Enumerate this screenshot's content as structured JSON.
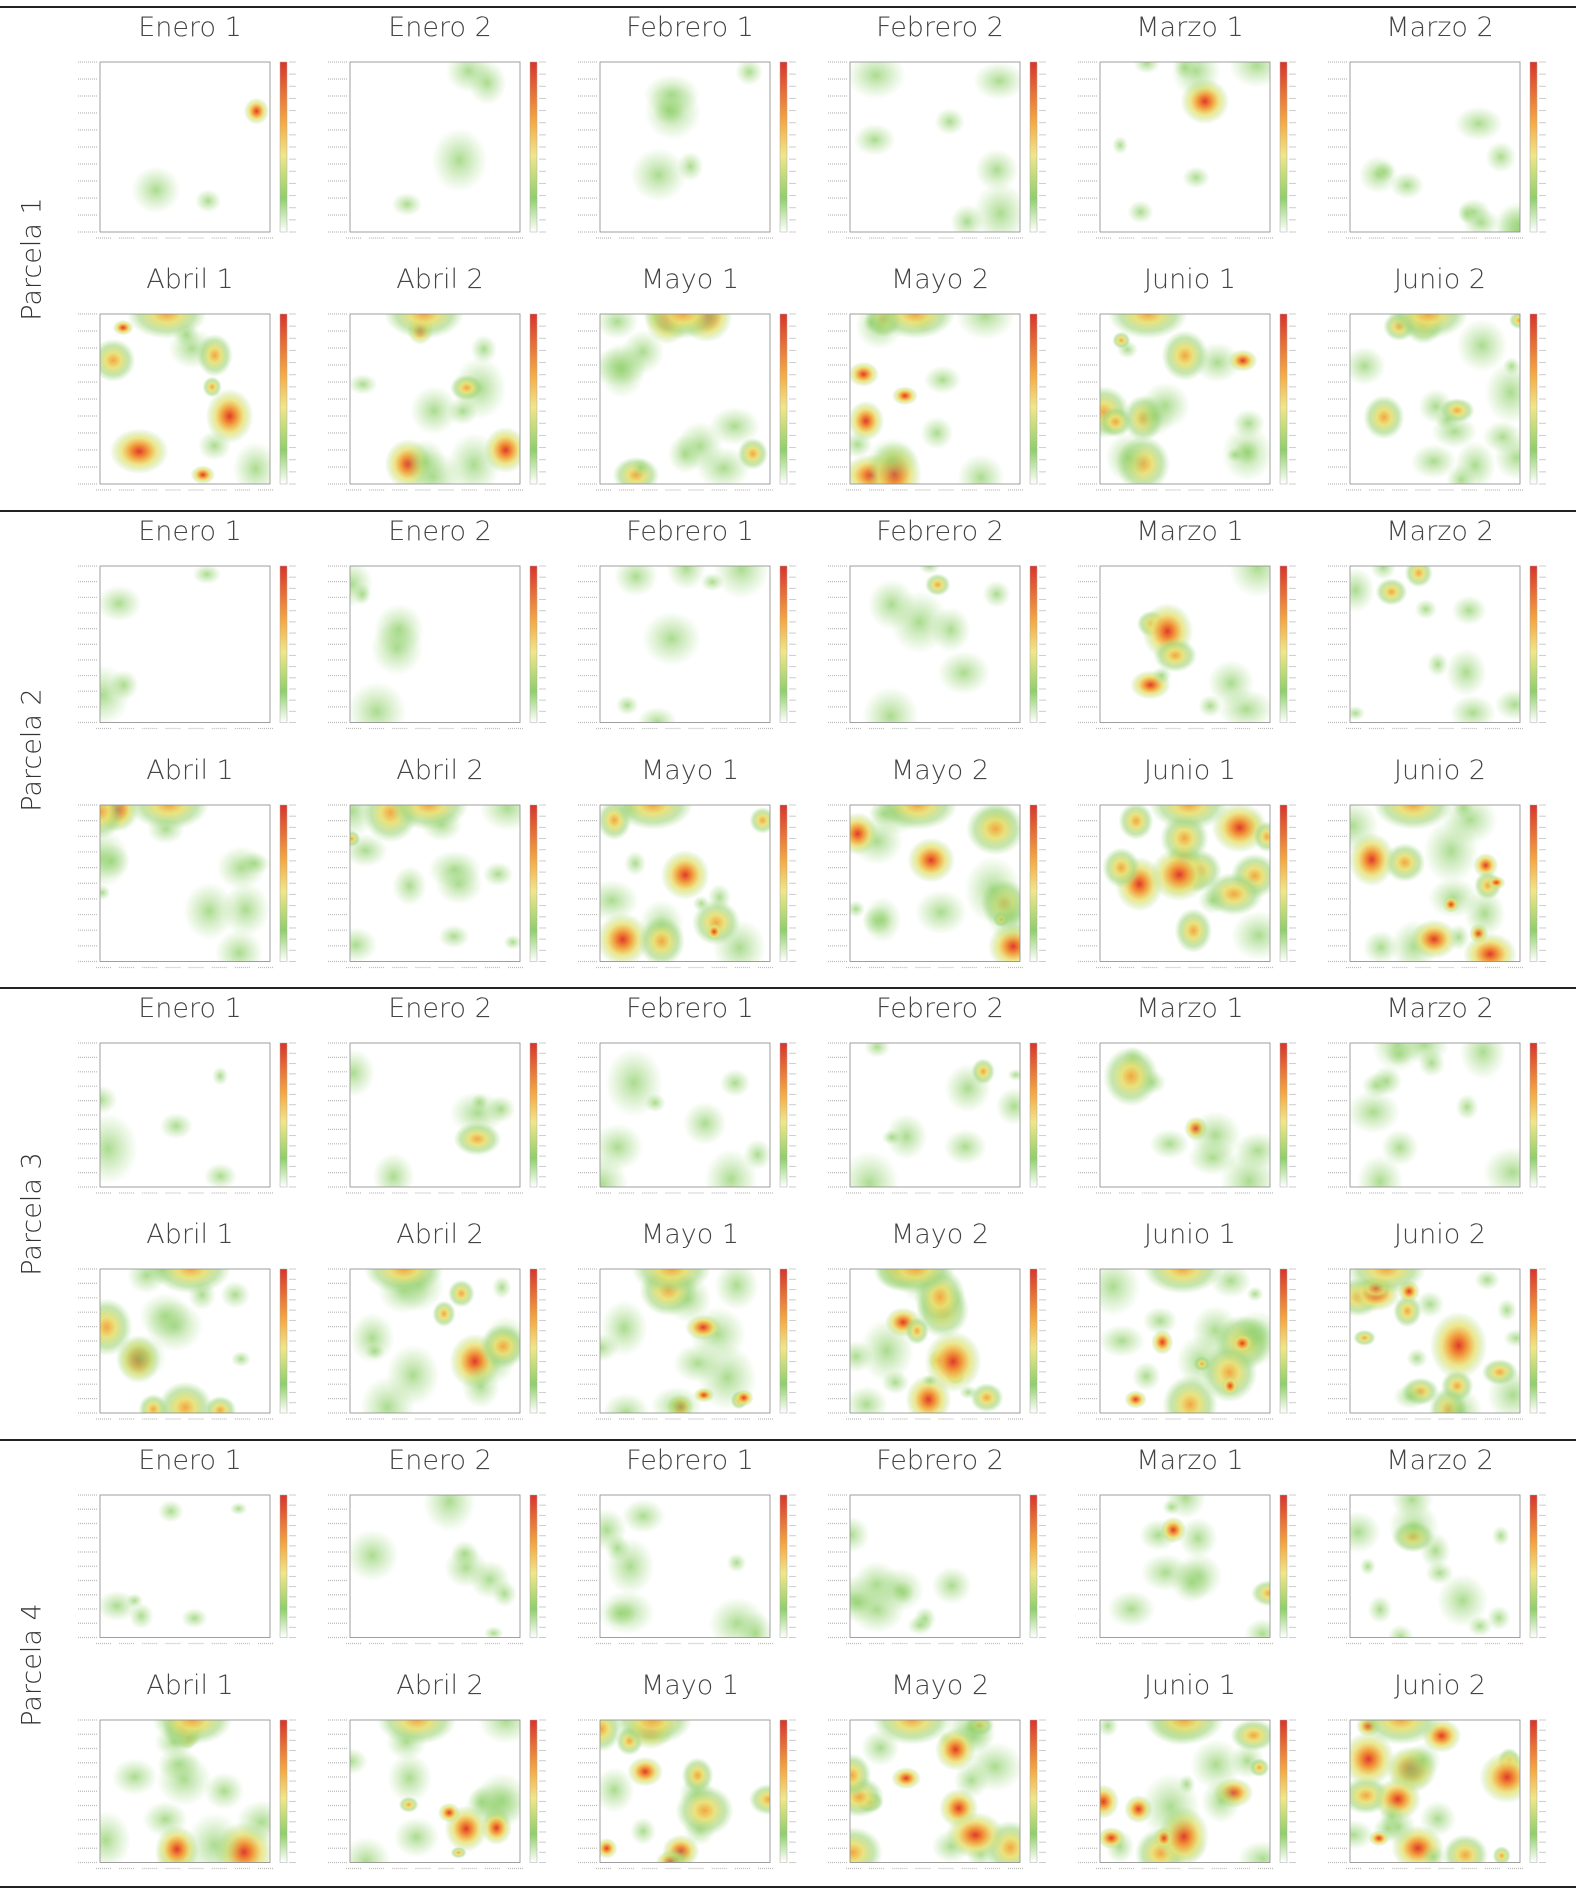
{
  "groups": [
    {
      "label": "Parcela 1",
      "rows": [
        [
          "Enero 1",
          "Enero 2",
          "Febrero 1",
          "Febrero 2",
          "Marzo 1",
          "Marzo 2"
        ],
        [
          "Abril 1",
          "Abril 2",
          "Mayo 1",
          "Mayo 2",
          "Junio 1",
          "Junio 2"
        ]
      ]
    },
    {
      "label": "Parcela 2",
      "rows": [
        [
          "Enero 1",
          "Enero 2",
          "Febrero 1",
          "Febrero 2",
          "Marzo 1",
          "Marzo 2"
        ],
        [
          "Abril 1",
          "Abril 2",
          "Mayo 1",
          "Mayo 2",
          "Junio 1",
          "Junio 2"
        ]
      ]
    },
    {
      "label": "Parcela 3",
      "rows": [
        [
          "Enero 1",
          "Enero 2",
          "Febrero 1",
          "Febrero 2",
          "Marzo 1",
          "Marzo 2"
        ],
        [
          "Abril 1",
          "Abril 2",
          "Mayo 1",
          "Mayo 2",
          "Junio 1",
          "Junio 2"
        ]
      ]
    },
    {
      "label": "Parcela 4",
      "rows": [
        [
          "Enero 1",
          "Enero 2",
          "Febrero 1",
          "Febrero 2",
          "Marzo 1",
          "Marzo 2"
        ],
        [
          "Abril 1",
          "Abril 2",
          "Mayo 1",
          "Mayo 2",
          "Junio 1",
          "Junio 2"
        ]
      ]
    }
  ]
}
